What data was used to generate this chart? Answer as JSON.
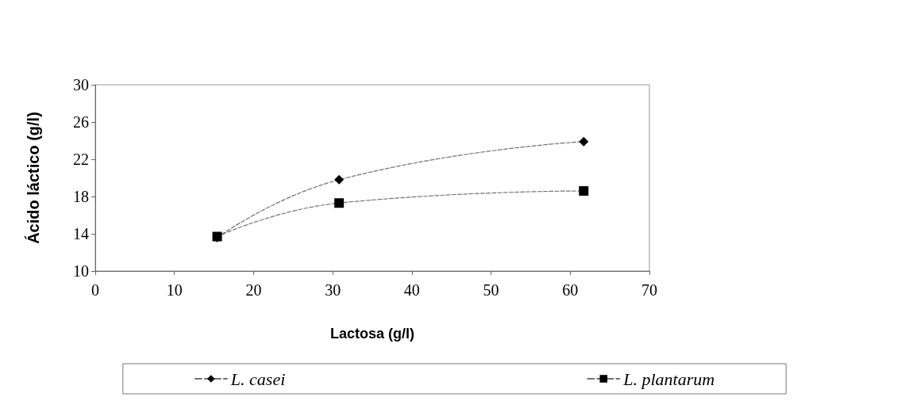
{
  "chart_data": {
    "type": "line",
    "xlabel": "Lactosa (g/l)",
    "ylabel": "Ácido láctico (g/l)",
    "x": [
      15.4,
      30.8,
      61.7
    ],
    "series": [
      {
        "name": "L. casei",
        "color": "#000000",
        "values": [
          13.6,
          19.8,
          23.9
        ],
        "marker": "diamond"
      },
      {
        "name": "L. plantarum",
        "color": "#000000",
        "values": [
          13.7,
          17.3,
          18.6
        ],
        "marker": "square"
      }
    ],
    "xlim": [
      0,
      70
    ],
    "xticks": [
      0,
      10,
      20,
      30,
      40,
      50,
      60,
      70
    ],
    "ylim": [
      10,
      30
    ],
    "yticks": [
      10,
      14,
      18,
      22,
      26,
      30
    ],
    "grid": false,
    "legend": "bottom",
    "line_style": "dashed"
  }
}
